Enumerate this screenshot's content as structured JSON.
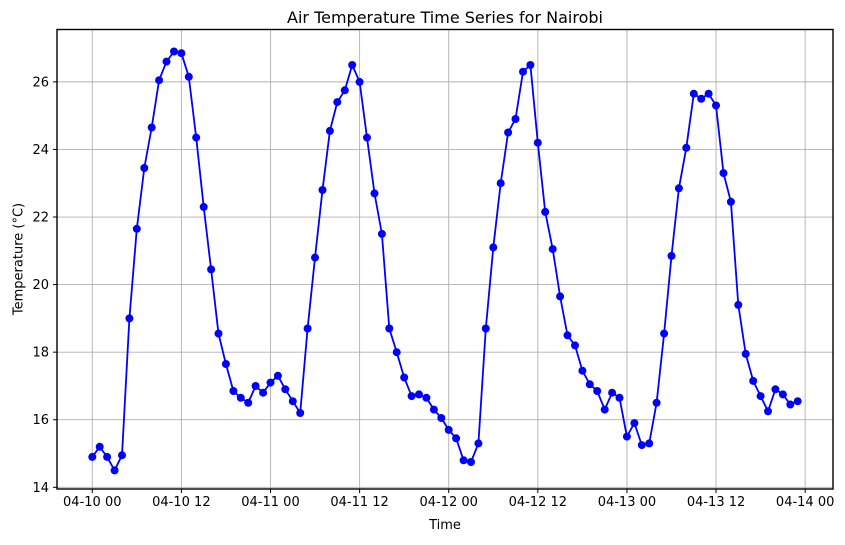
{
  "figure": {
    "background": "#ffffff"
  },
  "chart_data": {
    "type": "line",
    "title": "Air Temperature Time Series for Nairobi",
    "xlabel": "Time",
    "ylabel": "Temperature (°C)",
    "grid": true,
    "grid_color": "#b0b0b0",
    "line_color": "#0000ff",
    "marker": "circle",
    "marker_size": 4,
    "legend": "none",
    "x_start": "04-10 00:00",
    "x_interval_hours": 1,
    "x_tick_hours": [
      0,
      12,
      24,
      36,
      48,
      60,
      72,
      84,
      96
    ],
    "x_tick_labels": [
      "04-10 00",
      "04-10 12",
      "04-11 00",
      "04-11 12",
      "04-12 00",
      "04-12 12",
      "04-13 00",
      "04-13 12",
      "04-14 00"
    ],
    "y_ticks": [
      14,
      16,
      18,
      20,
      22,
      24,
      26
    ],
    "xlim_hours": [
      -4.75,
      99.75
    ],
    "ylim": [
      13.95,
      27.55
    ],
    "series": [
      {
        "name": "Air Temperature",
        "values": [
          14.9,
          15.2,
          14.9,
          14.5,
          14.95,
          19.0,
          21.65,
          23.45,
          24.65,
          26.05,
          26.6,
          26.9,
          26.85,
          26.15,
          24.35,
          22.3,
          20.45,
          18.55,
          17.65,
          16.85,
          16.65,
          16.5,
          17.0,
          16.8,
          17.1,
          17.3,
          16.9,
          16.55,
          16.2,
          18.7,
          20.8,
          22.8,
          24.55,
          25.4,
          25.75,
          26.5,
          26.0,
          24.35,
          22.7,
          21.5,
          18.7,
          18.0,
          17.25,
          16.7,
          16.75,
          16.65,
          16.3,
          16.05,
          15.7,
          15.45,
          14.8,
          14.75,
          15.3,
          18.7,
          21.1,
          23.0,
          24.5,
          24.9,
          26.3,
          26.5,
          24.2,
          22.15,
          21.05,
          19.65,
          18.5,
          18.2,
          17.45,
          17.05,
          16.85,
          16.3,
          16.8,
          16.65,
          15.5,
          15.9,
          15.25,
          15.3,
          16.5,
          18.55,
          20.85,
          22.85,
          24.05,
          25.65,
          25.5,
          25.65,
          25.3,
          23.3,
          22.45,
          19.4,
          17.95,
          17.15,
          16.7,
          16.25,
          16.9,
          16.75,
          16.45,
          16.55
        ]
      }
    ]
  }
}
